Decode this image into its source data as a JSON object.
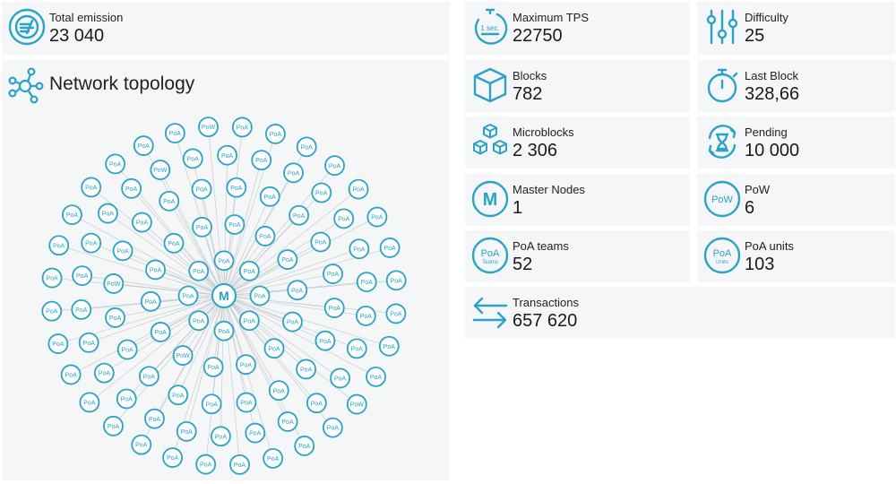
{
  "total_emission": {
    "label": "Total emission",
    "value": "23 040",
    "icon": "coins-icon"
  },
  "topology": {
    "title": "Network topology",
    "icon": "network-icon",
    "center_label": "M",
    "rings": [
      {
        "count": 8,
        "labels": [
          "PoA",
          "PoA",
          "PoA",
          "PoA",
          "PoA",
          "PoA",
          "PoA",
          "PoA"
        ]
      },
      {
        "count": 14,
        "labels": [
          "PoA",
          "PoA",
          "PoA",
          "PoA",
          "PoW",
          "PoA",
          "PoA",
          "PoA",
          "PoA",
          "PoA",
          "PoA",
          "PoA",
          "PoA",
          "PoA"
        ]
      },
      {
        "count": 20,
        "labels": [
          "PoA",
          "PoA",
          "PoA",
          "PoA",
          "PoA",
          "PoA",
          "PoA",
          "PoA",
          "PoW",
          "PoA",
          "PoA",
          "PoA",
          "PoA",
          "PoA",
          "PoA",
          "PoA",
          "PoA",
          "PoA",
          "PoA",
          "PoA"
        ]
      },
      {
        "count": 26,
        "labels": [
          "PoA",
          "PoA",
          "PoA",
          "PoA",
          "PoA",
          "PoA",
          "PoA",
          "PoA",
          "PoA",
          "PoA",
          "PoA",
          "PoA",
          "PoA",
          "PoW",
          "PoA",
          "PoA",
          "PoA",
          "PoA",
          "PoA",
          "PoA",
          "PoA",
          "PoA",
          "PoA",
          "PoA",
          "PoA",
          "PoA"
        ]
      },
      {
        "count": 32,
        "labels": [
          "PoA",
          "PoA",
          "PoA",
          "PoA",
          "PoA",
          "PoA",
          "PoA",
          "PoA",
          "PoA",
          "PoA",
          "PoA",
          "PoA",
          "PoA",
          "PoA",
          "PoA",
          "PoA",
          "PoW",
          "PoA",
          "PoA",
          "PoA",
          "PoA",
          "PoA",
          "PoA",
          "PoA",
          "PoA",
          "PoA",
          "PoA",
          "PoA",
          "PoW",
          "PoA",
          "PoA",
          "PoA"
        ]
      }
    ],
    "colors": {
      "node": "#2aa3c6",
      "edge": "#c8cdd1"
    }
  },
  "stats": [
    {
      "id": "max-tps",
      "label": "Maximum TPS",
      "value": "22750",
      "icon": "stopwatch-1sec-icon",
      "icon_text": "1 sec."
    },
    {
      "id": "difficulty",
      "label": "Difficulty",
      "value": "25",
      "icon": "sliders-icon"
    },
    {
      "id": "blocks",
      "label": "Blocks",
      "value": "782",
      "icon": "cube-icon"
    },
    {
      "id": "last-block",
      "label": "Last Block",
      "value": "328,66",
      "icon": "stopwatch-icon"
    },
    {
      "id": "microblocks",
      "label": "Microblocks",
      "value": "2 306",
      "icon": "cubes-icon"
    },
    {
      "id": "pending",
      "label": "Pending",
      "value": "10 000",
      "icon": "hourglass-icon"
    },
    {
      "id": "master-nodes",
      "label": "Master Nodes",
      "value": "1",
      "icon": "master-node-icon",
      "icon_text": "M"
    },
    {
      "id": "pow",
      "label": "PoW",
      "value": "6",
      "icon": "pow-icon",
      "icon_text": "PoW"
    },
    {
      "id": "poa-teams",
      "label": "PoA teams",
      "value": "52",
      "icon": "poa-teams-icon",
      "icon_text": "PoA",
      "icon_subtext": "Teams"
    },
    {
      "id": "poa-units",
      "label": "PoA units",
      "value": "103",
      "icon": "poa-units-icon",
      "icon_text": "PoA",
      "icon_subtext": "Units"
    },
    {
      "id": "transactions",
      "label": "Transactions",
      "value": "657 620",
      "icon": "transfer-arrows-icon"
    }
  ],
  "accent": "#2aa3c6"
}
